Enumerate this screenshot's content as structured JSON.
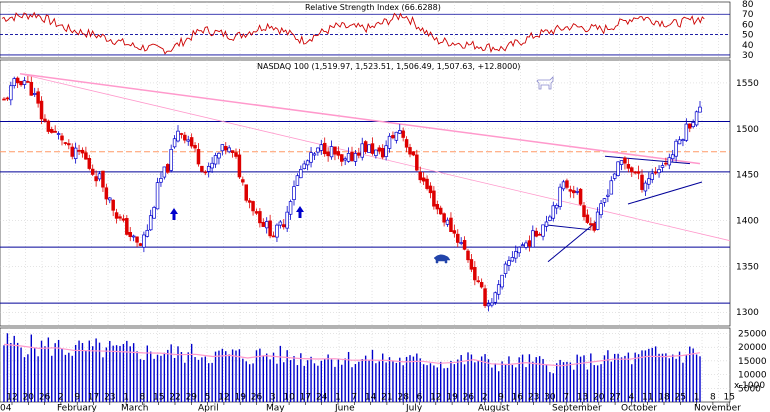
{
  "charts": {
    "rsi": {
      "title": "Relative Strength Index (66.6288)",
      "ticks": [
        "80",
        "70",
        "60",
        "50",
        "40",
        "30"
      ]
    },
    "price": {
      "title": "NASDAQ 100 (1,519.97, 1,523.51, 1,506.49, 1,507.63, +12.8000)",
      "ticks": [
        "1550",
        "1500",
        "1450",
        "1400",
        "1350",
        "1300"
      ]
    },
    "volume": {
      "ticks": [
        "25000",
        "20000",
        "15000",
        "10000",
        "5000"
      ],
      "unit": "x 1000"
    },
    "x_axis": {
      "day_labels": [
        "12",
        "20",
        "26",
        "2",
        "9",
        "17",
        "23",
        "1",
        "8",
        "15",
        "22",
        "29",
        "5",
        "12",
        "19",
        "26",
        "3",
        "10",
        "17",
        "24",
        "1",
        "7",
        "14",
        "21",
        "28",
        "6",
        "12",
        "19",
        "26",
        "2",
        "9",
        "16",
        "23",
        "30",
        "7",
        "13",
        "20",
        "27",
        "4",
        "11",
        "18",
        "25",
        "1",
        "8",
        "15"
      ],
      "month_labels": [
        "04",
        "February",
        "March",
        "April",
        "May",
        "June",
        "July",
        "August",
        "September",
        "October",
        "November"
      ]
    }
  },
  "colors": {
    "up_candle": "#0000cc",
    "down_candle": "#dd0000",
    "rsi_line": "#cc0000",
    "support_resistance": "#000099",
    "downtrend_line": "#ff99cc",
    "dashed_level": "#ff9966",
    "volume_bar": "#0000cc",
    "grid": "#c8c8c8"
  },
  "chart_data": [
    {
      "type": "line",
      "title": "Relative Strength Index (66.6288)",
      "ylim": [
        27,
        82
      ],
      "reference_levels": [
        70,
        50,
        30
      ],
      "x": [
        "Jan 12",
        "Jan 26",
        "Feb 9",
        "Feb 23",
        "Mar 8",
        "Mar 22",
        "Apr 5",
        "Apr 19",
        "May 3",
        "May 17",
        "May 31",
        "Jun 14",
        "Jun 28",
        "Jul 12",
        "Jul 26",
        "Aug 9",
        "Aug 23",
        "Sep 6",
        "Sep 20",
        "Oct 4",
        "Oct 18",
        "Nov 1"
      ],
      "values": [
        66,
        70,
        55,
        48,
        38,
        35,
        55,
        48,
        60,
        44,
        58,
        56,
        70,
        44,
        40,
        36,
        50,
        58,
        55,
        68,
        60,
        66.6
      ]
    },
    {
      "type": "candlestick",
      "title": "NASDAQ 100 (1,519.97, 1,523.51, 1,506.49, 1,507.63, +12.8000)",
      "ylim": [
        1285,
        1575
      ],
      "last_bar": {
        "open": 1519.97,
        "high": 1523.51,
        "low": 1506.49,
        "close": 1507.63,
        "change": 12.8
      },
      "horizontal_levels": [
        1508,
        1453,
        1371,
        1310
      ],
      "dashed_levels": [
        1475
      ],
      "approx_closes": [
        1530,
        1548,
        1555,
        1540,
        1510,
        1495,
        1490,
        1470,
        1475,
        1455,
        1445,
        1420,
        1400,
        1385,
        1370,
        1395,
        1440,
        1460,
        1500,
        1490,
        1470,
        1450,
        1470,
        1480,
        1465,
        1430,
        1410,
        1395,
        1385,
        1400,
        1440,
        1460,
        1470,
        1480,
        1475,
        1460,
        1470,
        1480,
        1478,
        1470,
        1490,
        1500,
        1475,
        1450,
        1430,
        1410,
        1395,
        1380,
        1360,
        1330,
        1308,
        1320,
        1350,
        1370,
        1375,
        1385,
        1400,
        1420,
        1440,
        1435,
        1410,
        1390,
        1420,
        1450,
        1465,
        1455,
        1440,
        1450,
        1460,
        1470,
        1490,
        1508,
        1520
      ]
    },
    {
      "type": "bar",
      "title": "",
      "ylim": [
        0,
        27000
      ],
      "description": "daily volume",
      "approx_values": [
        21000,
        20500,
        19500,
        20000,
        19000,
        18500,
        19000,
        18000,
        18500,
        17500,
        18000,
        17000,
        17500,
        16500,
        17000,
        16000,
        17000,
        16500,
        16000,
        15500,
        16000,
        15500,
        15000,
        15500,
        15000,
        14500,
        15000,
        14000,
        14500,
        15500,
        14000,
        13500,
        14500,
        14000,
        13000,
        13500,
        14500,
        15000,
        16000,
        15500,
        17000,
        16500,
        17000,
        18000
      ]
    }
  ]
}
